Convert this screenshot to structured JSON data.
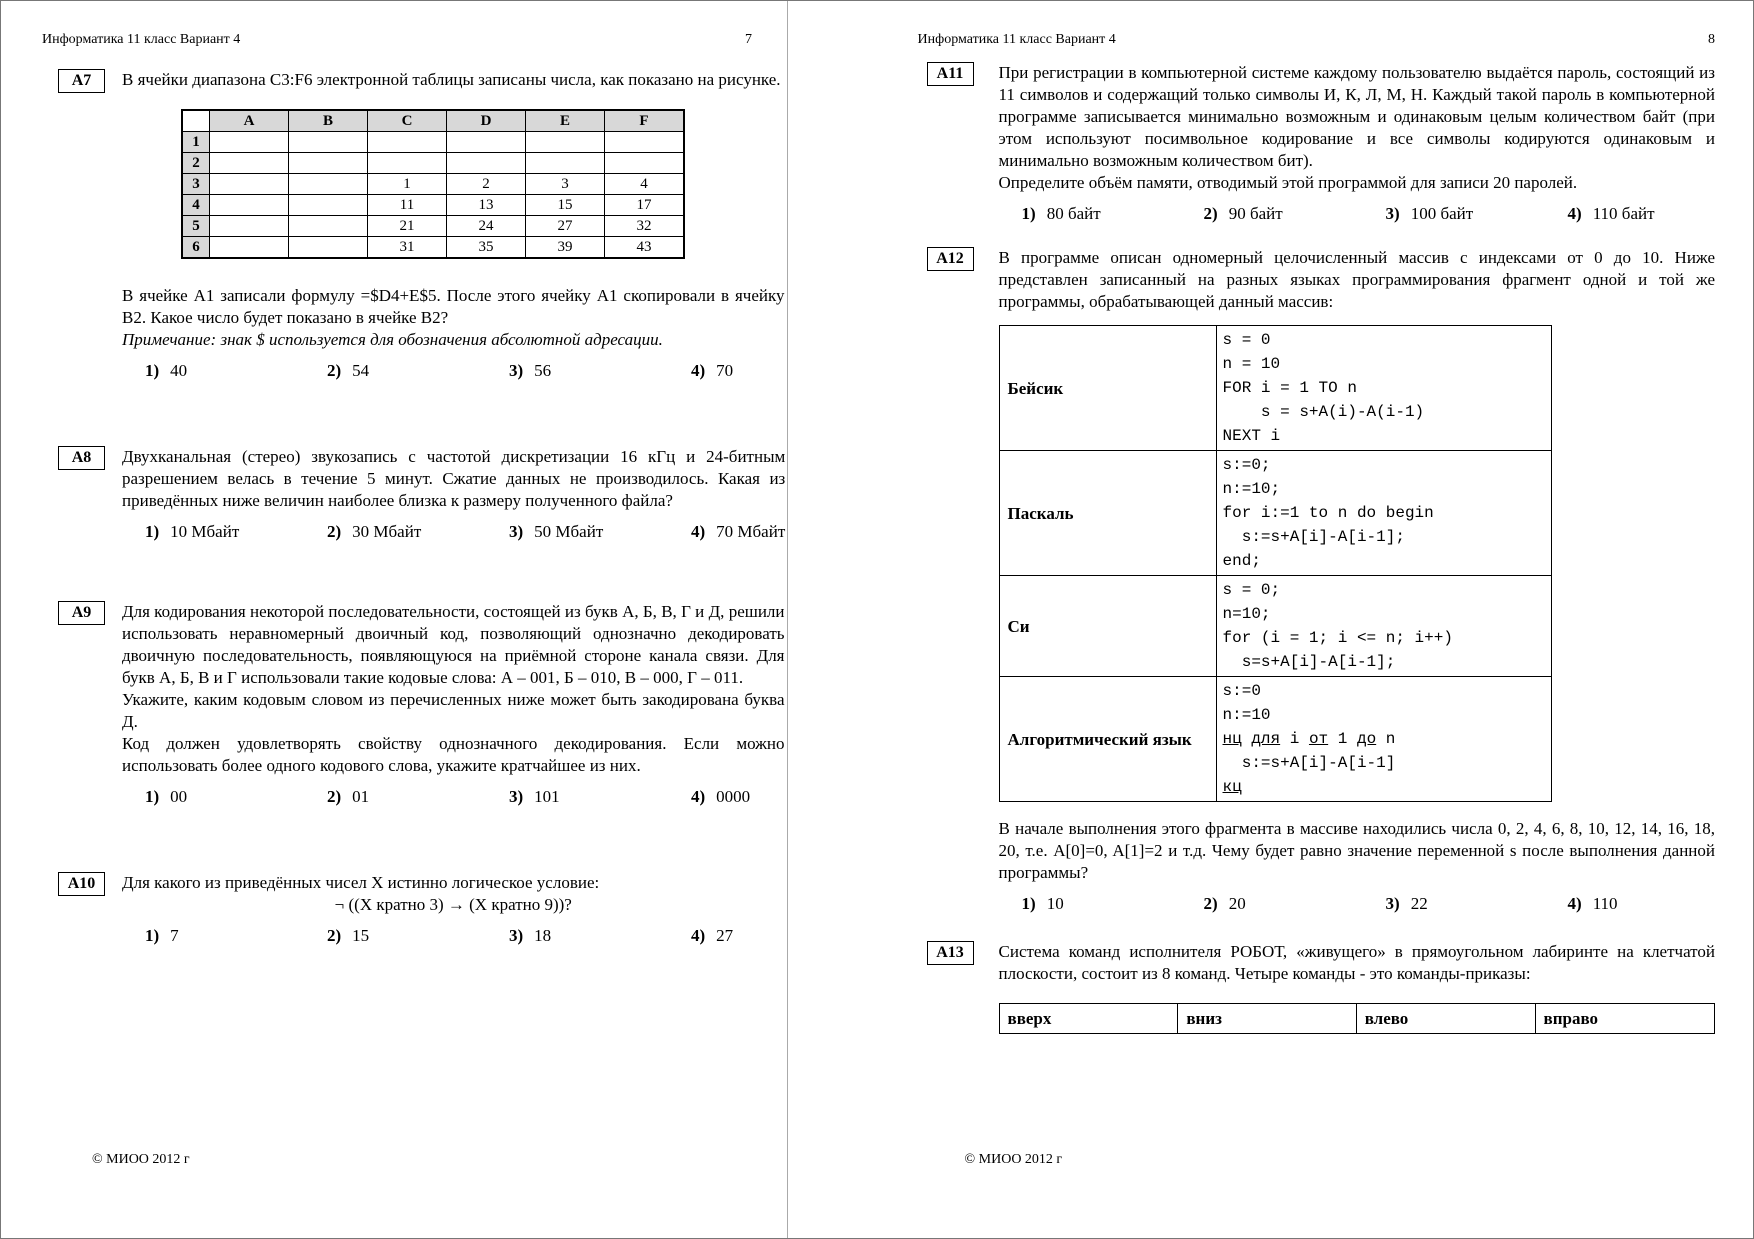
{
  "doc": {
    "header_title": "Информатика  11 класс  Вариант 4",
    "footer_text": "© МИОО 2012 г"
  },
  "page7": {
    "page_number": "7",
    "a7": {
      "label": "А7",
      "intro": "В ячейки диапазона C3:F6 электронной таблицы записаны числа, как показано на рисунке.",
      "table": [
        [
          "",
          "A",
          "B",
          "C",
          "D",
          "E",
          "F"
        ],
        [
          "1",
          "",
          "",
          "",
          "",
          "",
          ""
        ],
        [
          "2",
          "",
          "",
          "",
          "",
          "",
          ""
        ],
        [
          "3",
          "",
          "",
          "1",
          "2",
          "3",
          "4"
        ],
        [
          "4",
          "",
          "",
          "11",
          "13",
          "15",
          "17"
        ],
        [
          "5",
          "",
          "",
          "21",
          "24",
          "27",
          "32"
        ],
        [
          "6",
          "",
          "",
          "31",
          "35",
          "39",
          "43"
        ]
      ],
      "question": "В ячейке А1 записали формулу  =$D4+E$5. После этого ячейку А1 скопировали в ячейку В2. Какое число будет показано в ячейке В2?",
      "note": "Примечание: знак $ используется для обозначения абсолютной адресации.",
      "answers": [
        {
          "n": "1)",
          "v": "40"
        },
        {
          "n": "2)",
          "v": "54"
        },
        {
          "n": "3)",
          "v": "56"
        },
        {
          "n": "4)",
          "v": "70"
        }
      ]
    },
    "a8": {
      "label": "А8",
      "question": "Двухканальная (стерео) звукозапись с частотой дискретизации 16 кГц и 24-битным разрешением велась в течение 5 минут. Сжатие данных не производилось. Какая из приведённых ниже величин наиболее близка к размеру полученного файла?",
      "answers": [
        {
          "n": "1)",
          "v": "10 Мбайт"
        },
        {
          "n": "2)",
          "v": "30 Мбайт"
        },
        {
          "n": "3)",
          "v": "50 Мбайт"
        },
        {
          "n": "4)",
          "v": "70 Мбайт"
        }
      ]
    },
    "a9": {
      "label": "А9",
      "p1": "Для кодирования некоторой последовательности, состоящей из букв А, Б, В, Г и Д, решили использовать неравномерный двоичный код, позволяющий однозначно декодировать двоичную последовательность, появляющуюся на приёмной стороне канала связи. Для букв А, Б, В и Г использовали такие кодовые слова:  А – 001, Б – 010, В – 000, Г – 011.",
      "p2": "Укажите, каким кодовым словом из перечисленных ниже может быть закодирована буква Д.",
      "p3": "Код должен удовлетворять свойству однозначного декодирования. Если можно использовать более одного кодового слова, укажите кратчайшее из них.",
      "answers": [
        {
          "n": "1)",
          "v": "00"
        },
        {
          "n": "2)",
          "v": "01"
        },
        {
          "n": "3)",
          "v": "101"
        },
        {
          "n": "4)",
          "v": "0000"
        }
      ]
    },
    "a10": {
      "label": "А10",
      "question": "Для какого из приведённых чисел X истинно логическое условие:",
      "formula": "¬ ((X кратно 3) → (X кратно 9))?",
      "answers": [
        {
          "n": "1)",
          "v": "7"
        },
        {
          "n": "2)",
          "v": "15"
        },
        {
          "n": "3)",
          "v": "18"
        },
        {
          "n": "4)",
          "v": "27"
        }
      ]
    }
  },
  "page8": {
    "page_number": "8",
    "a11": {
      "label": "А11",
      "p1": "При регистрации в компьютерной системе каждому пользователю выдаётся пароль, состоящий из 11 символов и содержащий только символы И, К, Л, М, Н. Каждый такой пароль в компьютерной программе записывается минимально возможным и одинаковым целым количеством байт (при этом используют посимвольное кодирование и все символы кодируются одинаковым и минимально возможным количеством бит).",
      "p2": "Определите объём памяти, отводимый этой программой для записи 20 паролей.",
      "answers": [
        {
          "n": "1)",
          "v": "80 байт"
        },
        {
          "n": "2)",
          "v": "90 байт"
        },
        {
          "n": "3)",
          "v": "100 байт"
        },
        {
          "n": "4)",
          "v": "110 байт"
        }
      ]
    },
    "a12": {
      "label": "А12",
      "intro": "В программе описан одномерный целочисленный массив с индексами от 0 до 10. Ниже представлен записанный на разных языках программирования фрагмент одной и той же программы, обрабатывающей данный массив:",
      "languages": [
        {
          "name": "Бейсик",
          "code": "s = 0\nn = 10\nFOR i = 1 TO n\n    s = s+A(i)-A(i-1)\nNEXT i"
        },
        {
          "name": "Паскаль",
          "code": "s:=0;\nn:=10;\nfor i:=1 to n do begin\n  s:=s+A[i]-A[i-1];\nend;"
        },
        {
          "name": "Си",
          "code": "s = 0;\nn=10;\nfor (i = 1; i <= n; i++)\n  s=s+A[i]-A[i-1];"
        },
        {
          "name": "Алгоритмический язык",
          "code": "s:=0\nn:=10\nнц для i от 1 до n\n  s:=s+A[i]-A[i-1]\nкц"
        }
      ],
      "underline_keywords": [
        "нц",
        "для",
        "от",
        "до",
        "кц"
      ],
      "outro": "В начале выполнения этого фрагмента в массиве находились числа 0, 2, 4, 6, 8, 10, 12, 14, 16, 18, 20,  т.е. A[0]=0, A[1]=2 и т.д.  Чему будет равно значение переменной s после выполнения данной программы?",
      "answers": [
        {
          "n": "1)",
          "v": "10"
        },
        {
          "n": "2)",
          "v": "20"
        },
        {
          "n": "3)",
          "v": "22"
        },
        {
          "n": "4)",
          "v": "110"
        }
      ]
    },
    "a13": {
      "label": "А13",
      "question": "Система команд исполнителя РОБОТ, «живущего» в прямоугольном лабиринте на клетчатой плоскости, состоит из 8 команд. Четыре команды - это команды-приказы:",
      "commands_table": [
        [
          "вверх",
          "вниз",
          "влево",
          "вправо"
        ]
      ]
    }
  }
}
